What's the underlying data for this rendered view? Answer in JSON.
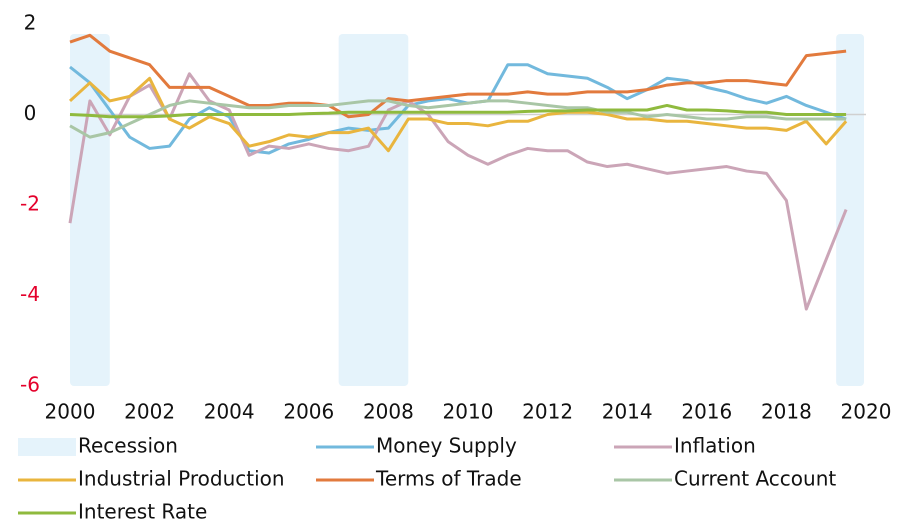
{
  "chart_data": {
    "type": "line",
    "x": [
      2000,
      2000.5,
      2001,
      2001.5,
      2002,
      2002.5,
      2003,
      2003.5,
      2004,
      2004.5,
      2005,
      2005.5,
      2006,
      2006.5,
      2007,
      2007.5,
      2008,
      2008.5,
      2009,
      2009.5,
      2010,
      2010.5,
      2011,
      2011.5,
      2012,
      2012.5,
      2013,
      2013.5,
      2014,
      2014.5,
      2015,
      2015.5,
      2016,
      2016.5,
      2017,
      2017.5,
      2018,
      2018.5,
      2019,
      2019.5
    ],
    "xlim": [
      2000,
      2020
    ],
    "xticks": [
      2000,
      2002,
      2004,
      2006,
      2008,
      2010,
      2012,
      2014,
      2016,
      2018,
      2020
    ],
    "ylim": [
      -6,
      2
    ],
    "yticks": [
      -6,
      -4,
      -2,
      0,
      2
    ],
    "negative_tick_color": "#e4002b",
    "zero_line": true,
    "shaded": {
      "name": "Recession",
      "color": "#e5f3fb",
      "spans": [
        [
          2000,
          2001
        ],
        [
          2006.75,
          2008.5
        ],
        [
          2019.25,
          2019.95
        ]
      ]
    },
    "series": [
      {
        "name": "Money Supply",
        "color": "#72b9dd",
        "values": [
          1.05,
          0.7,
          0.1,
          -0.5,
          -0.75,
          -0.7,
          -0.1,
          0.15,
          -0.05,
          -0.8,
          -0.85,
          -0.65,
          -0.55,
          -0.4,
          -0.3,
          -0.35,
          -0.3,
          0.2,
          0.3,
          0.35,
          0.25,
          0.3,
          1.1,
          1.1,
          0.9,
          0.85,
          0.8,
          0.6,
          0.35,
          0.55,
          0.8,
          0.75,
          0.6,
          0.5,
          0.35,
          0.25,
          0.4,
          0.2,
          0.05,
          -0.1
        ]
      },
      {
        "name": "Inflation",
        "color": "#cba5b7",
        "values": [
          -2.4,
          0.3,
          -0.45,
          0.4,
          0.65,
          -0.1,
          0.9,
          0.3,
          0.1,
          -0.9,
          -0.7,
          -0.75,
          -0.65,
          -0.75,
          -0.8,
          -0.7,
          0.1,
          0.3,
          0,
          -0.6,
          -0.9,
          -1.1,
          -0.9,
          -0.75,
          -0.8,
          -0.8,
          -1.05,
          -1.15,
          -1.1,
          -1.2,
          -1.3,
          -1.25,
          -1.2,
          -1.15,
          -1.25,
          -1.3,
          -1.9,
          -4.3,
          -3.2,
          -2.1
        ]
      },
      {
        "name": "Industrial Production",
        "color": "#e9b53e",
        "values": [
          0.3,
          0.7,
          0.3,
          0.4,
          0.8,
          -0.1,
          -0.3,
          -0.05,
          -0.2,
          -0.7,
          -0.6,
          -0.45,
          -0.5,
          -0.4,
          -0.4,
          -0.3,
          -0.8,
          -0.1,
          -0.1,
          -0.2,
          -0.2,
          -0.25,
          -0.15,
          -0.15,
          0,
          0.05,
          0.05,
          0,
          -0.1,
          -0.1,
          -0.15,
          -0.15,
          -0.2,
          -0.25,
          -0.3,
          -0.3,
          -0.35,
          -0.15,
          -0.65,
          -0.15
        ]
      },
      {
        "name": "Terms of Trade",
        "color": "#e27a3d",
        "values": [
          1.6,
          1.75,
          1.4,
          1.25,
          1.1,
          0.6,
          0.6,
          0.6,
          0.4,
          0.2,
          0.2,
          0.25,
          0.25,
          0.2,
          -0.05,
          0,
          0.35,
          0.3,
          0.35,
          0.4,
          0.45,
          0.45,
          0.45,
          0.5,
          0.45,
          0.45,
          0.5,
          0.5,
          0.5,
          0.55,
          0.65,
          0.7,
          0.7,
          0.75,
          0.75,
          0.7,
          0.65,
          1.3,
          1.35,
          1.4
        ]
      },
      {
        "name": "Current Account",
        "color": "#a9c6a6",
        "values": [
          -0.25,
          -0.5,
          -0.4,
          -0.2,
          0,
          0.2,
          0.3,
          0.25,
          0.2,
          0.15,
          0.15,
          0.2,
          0.2,
          0.2,
          0.25,
          0.3,
          0.3,
          0.2,
          0.15,
          0.2,
          0.25,
          0.3,
          0.3,
          0.25,
          0.2,
          0.15,
          0.15,
          0.05,
          0.05,
          -0.05,
          0,
          -0.05,
          -0.1,
          -0.1,
          -0.05,
          -0.05,
          -0.1,
          -0.1,
          -0.1,
          -0.1
        ]
      },
      {
        "name": "Interest Rate",
        "color": "#8fba3e",
        "values": [
          0,
          -0.02,
          -0.05,
          -0.05,
          -0.05,
          -0.03,
          0,
          0,
          0,
          0,
          0,
          0,
          0.02,
          0.03,
          0.05,
          0.05,
          0.05,
          0.05,
          0.05,
          0.05,
          0.05,
          0.05,
          0.05,
          0.07,
          0.08,
          0.08,
          0.1,
          0.1,
          0.1,
          0.1,
          0.2,
          0.1,
          0.1,
          0.08,
          0.05,
          0.05,
          0,
          0,
          0,
          0
        ]
      }
    ]
  }
}
